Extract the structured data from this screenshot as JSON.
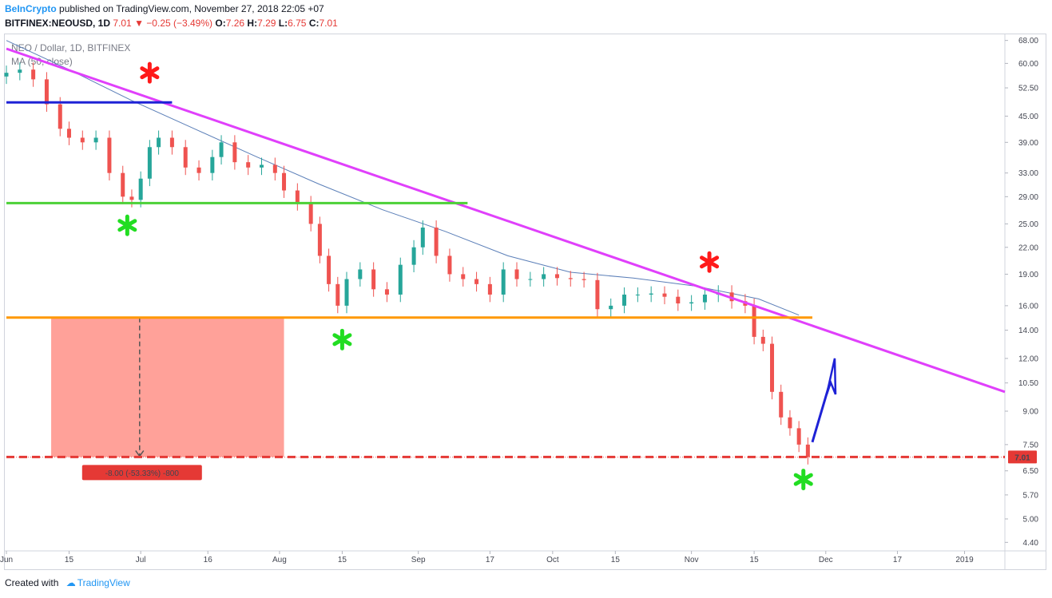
{
  "header": {
    "author": "BeInCrypto",
    "published_text": "published on TradingView.com, November 27, 2018 22:05 +07",
    "symbol": "BITFINEX:NEOUSD, 1D",
    "last": "7.01",
    "change": "−0.25 (−3.49%)",
    "o_label": "O:",
    "o_value": "7.26",
    "h_label": "H:",
    "h_value": "7.29",
    "l_label": "L:",
    "l_value": "6.75",
    "c_label": "C:",
    "c_value": "7.01"
  },
  "footer": {
    "created_with": "Created with",
    "brand": "TradingView"
  },
  "chart_data": {
    "type": "candlestick",
    "legend_title": "NEO / Dollar, 1D, BITFINEX",
    "legend_indicator": "MA (50, close)",
    "y_scale": "log",
    "ylim": [
      4.2,
      70
    ],
    "y_ticks": [
      "68.00",
      "60.00",
      "52.50",
      "45.00",
      "39.00",
      "33.00",
      "29.00",
      "25.00",
      "22.00",
      "19.00",
      "16.00",
      "14.00",
      "12.00",
      "10.50",
      "9.00",
      "7.50",
      "6.50",
      "5.70",
      "5.00",
      "4.40"
    ],
    "y_tick_values": [
      68,
      60,
      52.5,
      45,
      39,
      33,
      29,
      25,
      22,
      19,
      16,
      14,
      12,
      10.5,
      9,
      7.5,
      6.5,
      5.7,
      5,
      4.4
    ],
    "x_range": [
      "2018-06-01",
      "2019-01-10"
    ],
    "x_ticks": [
      {
        "label": "Jun",
        "date": "2018-06-01"
      },
      {
        "label": "15",
        "date": "2018-06-15"
      },
      {
        "label": "Jul",
        "date": "2018-07-01"
      },
      {
        "label": "16",
        "date": "2018-07-16"
      },
      {
        "label": "Aug",
        "date": "2018-08-01"
      },
      {
        "label": "15",
        "date": "2018-08-15"
      },
      {
        "label": "Sep",
        "date": "2018-09-01"
      },
      {
        "label": "17",
        "date": "2018-09-17"
      },
      {
        "label": "Oct",
        "date": "2018-10-01"
      },
      {
        "label": "15",
        "date": "2018-10-15"
      },
      {
        "label": "Nov",
        "date": "2018-11-01"
      },
      {
        "label": "15",
        "date": "2018-11-15"
      },
      {
        "label": "Dec",
        "date": "2018-12-01"
      },
      {
        "label": "17",
        "date": "2018-12-17"
      },
      {
        "label": "2019",
        "date": "2019-01-01"
      }
    ],
    "current_price_label": "7.01",
    "current_price": 7.01,
    "measure_label": "-8.00 (-53.33%) -800",
    "close_series": [
      {
        "date": "2018-06-01",
        "close": 57
      },
      {
        "date": "2018-06-04",
        "close": 58
      },
      {
        "date": "2018-06-07",
        "close": 55
      },
      {
        "date": "2018-06-10",
        "close": 48
      },
      {
        "date": "2018-06-13",
        "close": 42
      },
      {
        "date": "2018-06-15",
        "close": 40
      },
      {
        "date": "2018-06-18",
        "close": 39
      },
      {
        "date": "2018-06-21",
        "close": 40
      },
      {
        "date": "2018-06-24",
        "close": 33
      },
      {
        "date": "2018-06-27",
        "close": 29
      },
      {
        "date": "2018-06-29",
        "close": 28.5
      },
      {
        "date": "2018-07-01",
        "close": 32
      },
      {
        "date": "2018-07-03",
        "close": 38
      },
      {
        "date": "2018-07-05",
        "close": 40
      },
      {
        "date": "2018-07-08",
        "close": 38
      },
      {
        "date": "2018-07-11",
        "close": 34
      },
      {
        "date": "2018-07-14",
        "close": 33
      },
      {
        "date": "2018-07-17",
        "close": 36
      },
      {
        "date": "2018-07-19",
        "close": 39
      },
      {
        "date": "2018-07-22",
        "close": 35
      },
      {
        "date": "2018-07-25",
        "close": 34
      },
      {
        "date": "2018-07-28",
        "close": 34.5
      },
      {
        "date": "2018-07-31",
        "close": 33
      },
      {
        "date": "2018-08-02",
        "close": 30
      },
      {
        "date": "2018-08-05",
        "close": 28
      },
      {
        "date": "2018-08-08",
        "close": 25
      },
      {
        "date": "2018-08-10",
        "close": 21
      },
      {
        "date": "2018-08-12",
        "close": 18
      },
      {
        "date": "2018-08-14",
        "close": 16
      },
      {
        "date": "2018-08-16",
        "close": 18.5
      },
      {
        "date": "2018-08-19",
        "close": 19.5
      },
      {
        "date": "2018-08-22",
        "close": 17.5
      },
      {
        "date": "2018-08-25",
        "close": 17
      },
      {
        "date": "2018-08-28",
        "close": 20
      },
      {
        "date": "2018-08-31",
        "close": 22
      },
      {
        "date": "2018-09-02",
        "close": 24.5
      },
      {
        "date": "2018-09-05",
        "close": 21
      },
      {
        "date": "2018-09-08",
        "close": 19
      },
      {
        "date": "2018-09-11",
        "close": 18.5
      },
      {
        "date": "2018-09-14",
        "close": 18
      },
      {
        "date": "2018-09-17",
        "close": 17
      },
      {
        "date": "2018-09-20",
        "close": 19.5
      },
      {
        "date": "2018-09-23",
        "close": 18.5
      },
      {
        "date": "2018-09-26",
        "close": 18.5
      },
      {
        "date": "2018-09-29",
        "close": 19
      },
      {
        "date": "2018-10-02",
        "close": 18.6
      },
      {
        "date": "2018-10-05",
        "close": 18.5
      },
      {
        "date": "2018-10-08",
        "close": 18.4
      },
      {
        "date": "2018-10-11",
        "close": 15.7
      },
      {
        "date": "2018-10-14",
        "close": 16
      },
      {
        "date": "2018-10-17",
        "close": 17
      },
      {
        "date": "2018-10-20",
        "close": 17
      },
      {
        "date": "2018-10-23",
        "close": 17.1
      },
      {
        "date": "2018-10-26",
        "close": 16.8
      },
      {
        "date": "2018-10-29",
        "close": 16.2
      },
      {
        "date": "2018-11-01",
        "close": 16.3
      },
      {
        "date": "2018-11-04",
        "close": 17
      },
      {
        "date": "2018-11-07",
        "close": 17.2
      },
      {
        "date": "2018-11-10",
        "close": 16.4
      },
      {
        "date": "2018-11-13",
        "close": 16
      },
      {
        "date": "2018-11-15",
        "close": 13.5
      },
      {
        "date": "2018-11-17",
        "close": 13
      },
      {
        "date": "2018-11-19",
        "close": 10
      },
      {
        "date": "2018-11-21",
        "close": 8.7
      },
      {
        "date": "2018-11-23",
        "close": 8.2
      },
      {
        "date": "2018-11-25",
        "close": 7.5
      },
      {
        "date": "2018-11-27",
        "close": 7.01
      }
    ],
    "ma50_series": [
      {
        "date": "2018-06-01",
        "value": 68
      },
      {
        "date": "2018-06-15",
        "value": 58
      },
      {
        "date": "2018-06-29",
        "value": 49
      },
      {
        "date": "2018-07-13",
        "value": 42
      },
      {
        "date": "2018-07-27",
        "value": 36
      },
      {
        "date": "2018-08-10",
        "value": 31
      },
      {
        "date": "2018-08-24",
        "value": 27
      },
      {
        "date": "2018-09-07",
        "value": 24
      },
      {
        "date": "2018-09-21",
        "value": 21
      },
      {
        "date": "2018-10-05",
        "value": 19.2
      },
      {
        "date": "2018-10-19",
        "value": 18.6
      },
      {
        "date": "2018-11-02",
        "value": 17.8
      },
      {
        "date": "2018-11-16",
        "value": 16.6
      },
      {
        "date": "2018-11-25",
        "value": 15.2
      }
    ],
    "lines": [
      {
        "name": "resistance trendline",
        "color": "#e040fb",
        "from": {
          "date": "2018-06-01",
          "price": 65
        },
        "to": {
          "date": "2019-01-10",
          "price": 10
        }
      },
      {
        "name": "blue level",
        "color": "#1e22d6",
        "from": {
          "date": "2018-06-01",
          "price": 48.5
        },
        "to": {
          "date": "2018-07-08",
          "price": 48.5
        }
      },
      {
        "name": "green support",
        "color": "#4cd137",
        "from": {
          "date": "2018-06-01",
          "price": 28
        },
        "to": {
          "date": "2018-09-12",
          "price": 28
        }
      },
      {
        "name": "orange support",
        "color": "#ff9800",
        "from": {
          "date": "2018-06-01",
          "price": 15
        },
        "to": {
          "date": "2018-11-28",
          "price": 15
        }
      },
      {
        "name": "current price dashed",
        "color": "#e53935",
        "from": {
          "date": "2018-06-01",
          "price": 7.01
        },
        "to": {
          "date": "2019-01-10",
          "price": 7.01
        }
      }
    ],
    "measure_box": {
      "from": {
        "date": "2018-06-11",
        "price": 15
      },
      "to": {
        "date": "2018-08-02",
        "price": 7.01
      },
      "color": "#ff8a80"
    },
    "markers": [
      {
        "shape": "asterisk",
        "color": "#ff1a1a",
        "date": "2018-07-03",
        "price": 57
      },
      {
        "shape": "asterisk",
        "color": "#22dd22",
        "date": "2018-06-28",
        "price": 24.8
      },
      {
        "shape": "asterisk",
        "color": "#22dd22",
        "date": "2018-08-15",
        "price": 13.3
      },
      {
        "shape": "asterisk",
        "color": "#ff1a1a",
        "date": "2018-11-05",
        "price": 20.3
      },
      {
        "shape": "asterisk",
        "color": "#22dd22",
        "date": "2018-11-26",
        "price": 6.2
      }
    ],
    "arrow": {
      "color": "#1e22d6",
      "from": {
        "date": "2018-11-28",
        "price": 7.6
      },
      "to": {
        "date": "2018-12-03",
        "price": 12
      }
    },
    "colors": {
      "up": "#26a69a",
      "down": "#ef5350",
      "ma": "#5b7fb8"
    }
  }
}
